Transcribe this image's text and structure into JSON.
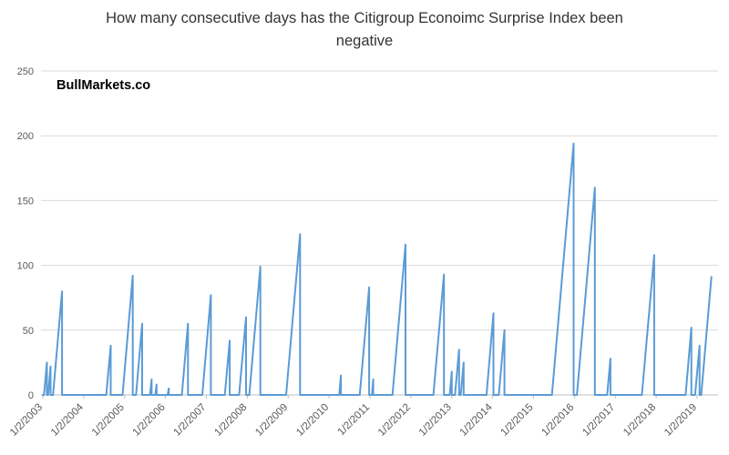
{
  "title": "How many consecutive days has the Citigroup Econoimc Surprise Index been negative",
  "brand": "BullMarkets.co",
  "chart_data": {
    "type": "line",
    "title": "How many consecutive days has the Citigroup Econoimc Surprise Index been negative",
    "xlabel": "",
    "ylabel": "",
    "ylim": [
      0,
      250
    ],
    "y_ticks": [
      0,
      50,
      100,
      150,
      200,
      250
    ],
    "x_tick_labels": [
      "1/2/2003",
      "1/2/2004",
      "1/2/2005",
      "1/2/2006",
      "1/2/2007",
      "1/2/2008",
      "1/2/2009",
      "1/2/2010",
      "1/2/2011",
      "1/2/2012",
      "1/2/2013",
      "1/2/2014",
      "1/2/2015",
      "1/2/2016",
      "1/2/2017",
      "1/2/2018",
      "1/2/2019"
    ],
    "x_tick_years": [
      2003,
      2004,
      2005,
      2006,
      2007,
      2008,
      2009,
      2010,
      2011,
      2012,
      2013,
      2014,
      2015,
      2016,
      2017,
      2018,
      2019
    ],
    "grid": "horizontal",
    "legend": "none",
    "line_color": "#5B9BD5",
    "gridline_color": "#D9D9D9",
    "axis_color": "#BFBFBF",
    "tick_label_color": "#595959",
    "points": [
      [
        2003.0,
        0
      ],
      [
        2003.03,
        0
      ],
      [
        2003.1,
        25
      ],
      [
        2003.1,
        0
      ],
      [
        2003.13,
        0
      ],
      [
        2003.19,
        22
      ],
      [
        2003.19,
        0
      ],
      [
        2003.25,
        0
      ],
      [
        2003.47,
        80
      ],
      [
        2003.47,
        0
      ],
      [
        2004.55,
        0
      ],
      [
        2004.66,
        38
      ],
      [
        2004.66,
        0
      ],
      [
        2004.95,
        0
      ],
      [
        2005.2,
        92
      ],
      [
        2005.2,
        0
      ],
      [
        2005.28,
        0
      ],
      [
        2005.43,
        55
      ],
      [
        2005.43,
        0
      ],
      [
        2005.62,
        0
      ],
      [
        2005.66,
        12
      ],
      [
        2005.66,
        0
      ],
      [
        2005.75,
        0
      ],
      [
        2005.78,
        8
      ],
      [
        2005.78,
        0
      ],
      [
        2006.05,
        0
      ],
      [
        2006.08,
        5
      ],
      [
        2006.08,
        0
      ],
      [
        2006.4,
        0
      ],
      [
        2006.55,
        55
      ],
      [
        2006.55,
        0
      ],
      [
        2006.9,
        0
      ],
      [
        2007.11,
        77
      ],
      [
        2007.11,
        0
      ],
      [
        2007.45,
        0
      ],
      [
        2007.57,
        42
      ],
      [
        2007.57,
        0
      ],
      [
        2007.8,
        0
      ],
      [
        2007.97,
        60
      ],
      [
        2007.97,
        0
      ],
      [
        2008.05,
        0
      ],
      [
        2008.32,
        99
      ],
      [
        2008.32,
        0
      ],
      [
        2008.95,
        0
      ],
      [
        2009.29,
        124
      ],
      [
        2009.29,
        0
      ],
      [
        2010.25,
        0
      ],
      [
        2010.29,
        15
      ],
      [
        2010.29,
        0
      ],
      [
        2010.75,
        0
      ],
      [
        2010.98,
        83
      ],
      [
        2010.98,
        0
      ],
      [
        2011.05,
        0
      ],
      [
        2011.08,
        12
      ],
      [
        2011.08,
        0
      ],
      [
        2011.55,
        0
      ],
      [
        2011.87,
        116
      ],
      [
        2011.87,
        0
      ],
      [
        2012.55,
        0
      ],
      [
        2012.81,
        93
      ],
      [
        2012.81,
        0
      ],
      [
        2012.95,
        0
      ],
      [
        2013.0,
        18
      ],
      [
        2013.0,
        0
      ],
      [
        2013.08,
        0
      ],
      [
        2013.18,
        35
      ],
      [
        2013.18,
        0
      ],
      [
        2013.22,
        0
      ],
      [
        2013.29,
        25
      ],
      [
        2013.29,
        0
      ],
      [
        2013.85,
        0
      ],
      [
        2014.02,
        63
      ],
      [
        2014.02,
        0
      ],
      [
        2014.15,
        0
      ],
      [
        2014.29,
        50
      ],
      [
        2014.29,
        0
      ],
      [
        2015.45,
        0
      ],
      [
        2015.98,
        194
      ],
      [
        2015.98,
        0
      ],
      [
        2016.06,
        0
      ],
      [
        2016.5,
        160
      ],
      [
        2016.5,
        0
      ],
      [
        2016.8,
        0
      ],
      [
        2016.88,
        28
      ],
      [
        2016.88,
        0
      ],
      [
        2017.65,
        0
      ],
      [
        2017.95,
        108
      ],
      [
        2017.95,
        0
      ],
      [
        2018.72,
        0
      ],
      [
        2018.86,
        52
      ],
      [
        2018.86,
        0
      ],
      [
        2018.95,
        0
      ],
      [
        2019.06,
        38
      ],
      [
        2019.06,
        0
      ],
      [
        2019.1,
        0
      ],
      [
        2019.35,
        91
      ]
    ]
  }
}
